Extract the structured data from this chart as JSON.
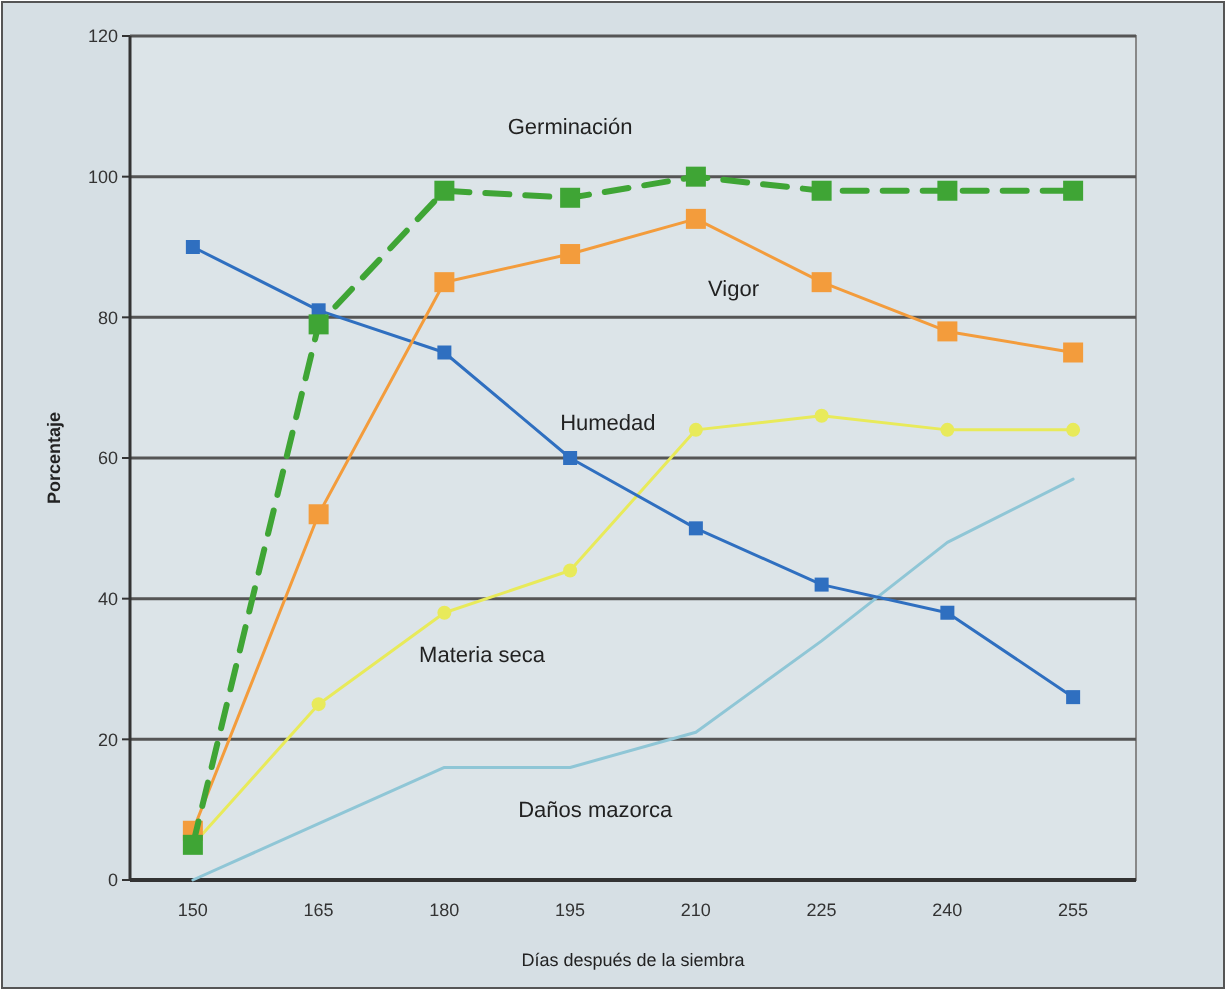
{
  "chart_data": {
    "type": "line",
    "xlabel": "Días después de la siembra",
    "ylabel": "Porcentaje",
    "categories": [
      "150",
      "165",
      "180",
      "195",
      "210",
      "225",
      "240",
      "255"
    ],
    "ylim": [
      0,
      120
    ],
    "yticks": [
      0,
      20,
      40,
      60,
      80,
      100,
      120
    ],
    "grid": "y",
    "marker": "square",
    "series": [
      {
        "name": "Germinación",
        "color": "#3fa535",
        "line_style": "dashed",
        "values": [
          5,
          79,
          98,
          97,
          100,
          98,
          98,
          98
        ]
      },
      {
        "name": "Vigor",
        "color": "#f39c3c",
        "line_style": "solid",
        "values": [
          7,
          52,
          85,
          89,
          94,
          85,
          78,
          75
        ]
      },
      {
        "name": "Humedad",
        "color": "#2f6fc0",
        "line_style": "solid",
        "values": [
          90,
          81,
          75,
          60,
          50,
          42,
          38,
          26
        ]
      },
      {
        "name": "Materia seca",
        "color": "#e8ea5a",
        "line_style": "solid",
        "marker": "circle",
        "values": [
          5,
          25,
          38,
          44,
          64,
          66,
          64,
          64
        ]
      },
      {
        "name": "Daños mazorca",
        "color": "#8fc6d6",
        "line_style": "solid",
        "marker": "none",
        "values": [
          0,
          8,
          16,
          16,
          21,
          34,
          48,
          57
        ]
      }
    ]
  }
}
